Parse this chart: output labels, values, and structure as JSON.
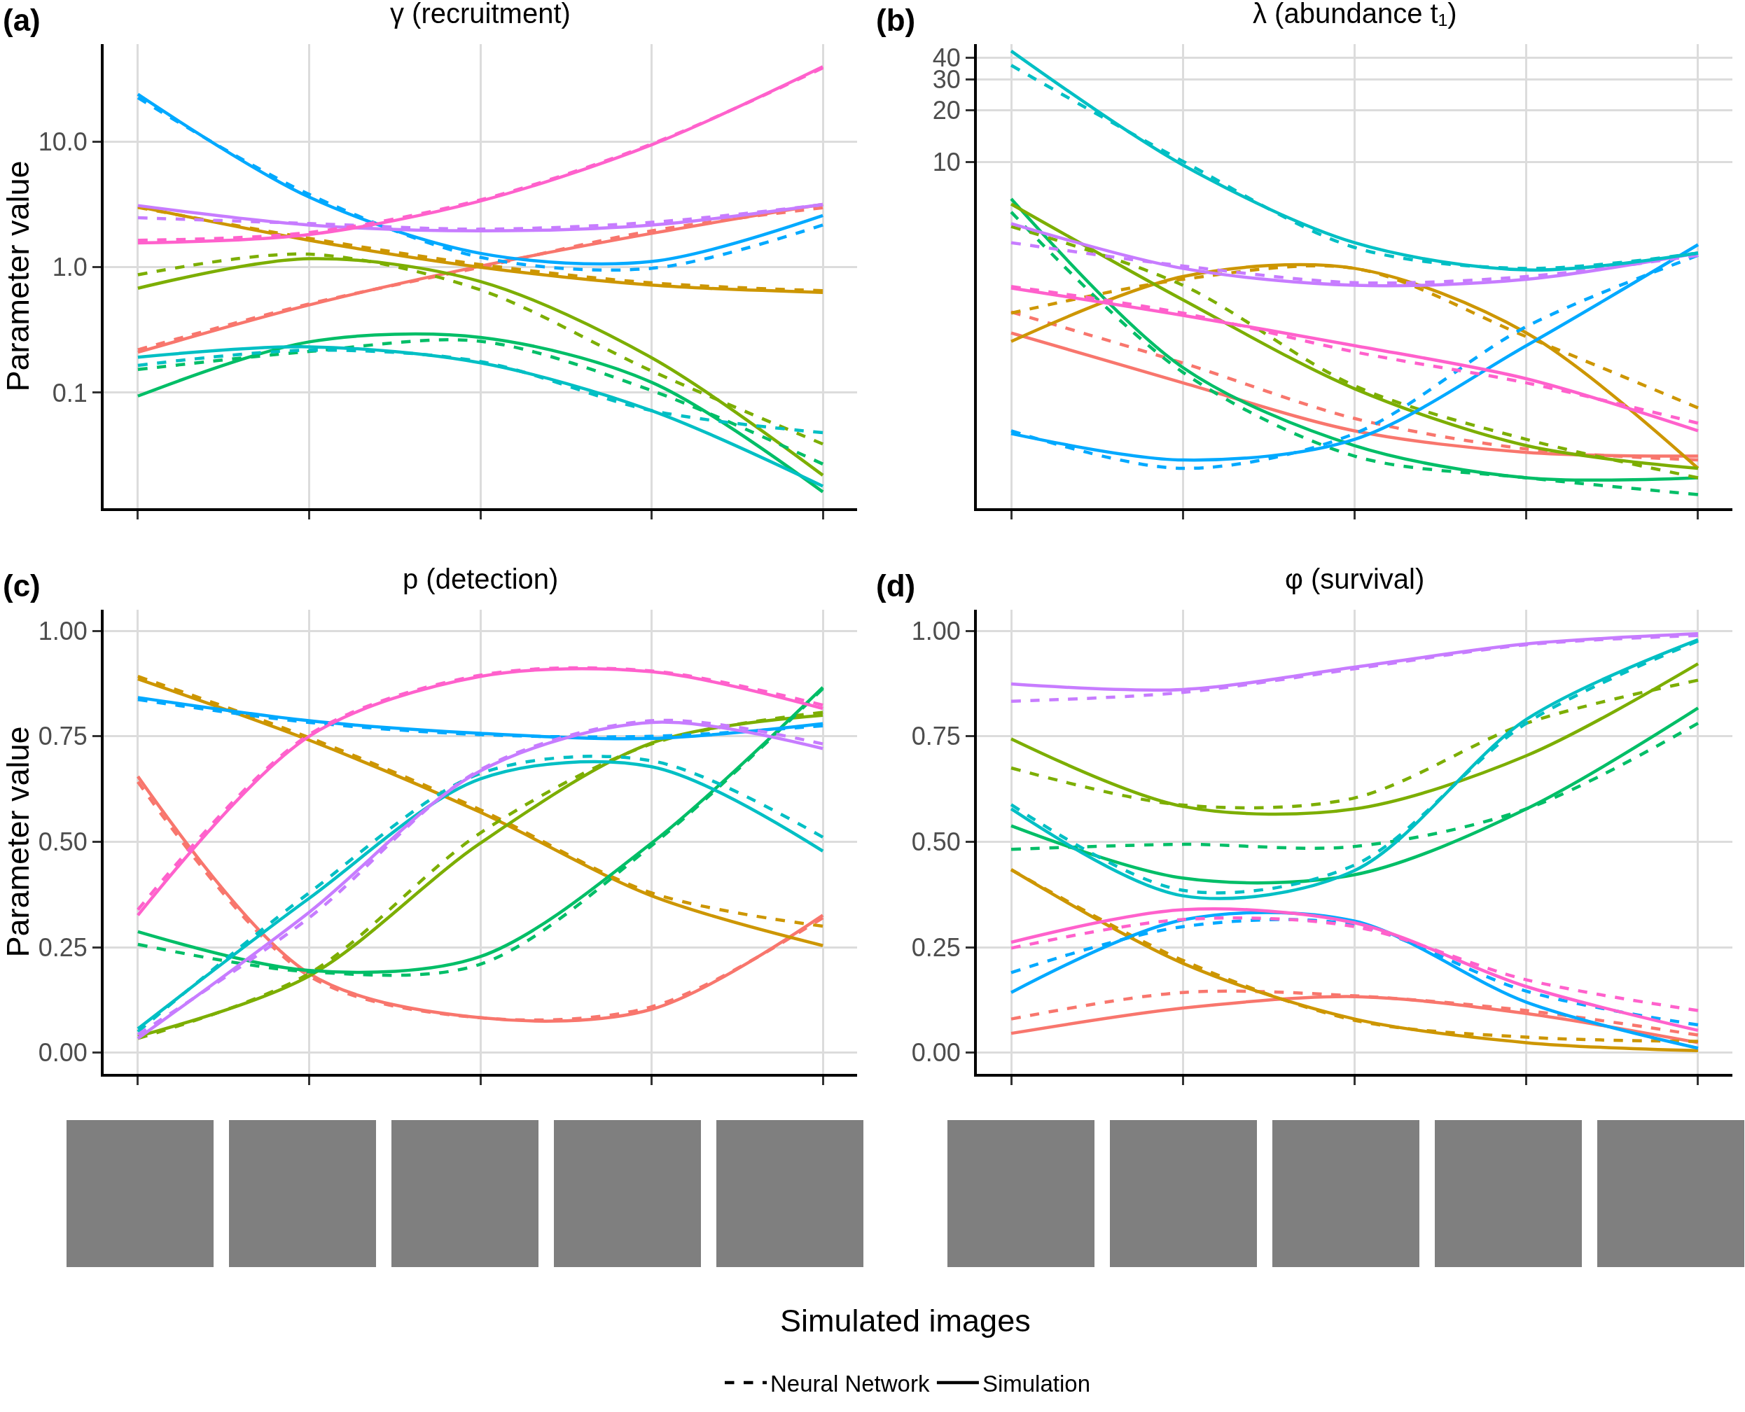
{
  "chart_data": [
    {
      "type": "line",
      "title": "γ (recruitment)",
      "ylabel": "Parameter value",
      "annotations": [
        "(a)"
      ],
      "categories": [
        null,
        null,
        null,
        null,
        null
      ],
      "log": true,
      "ylim": [
        0.012,
        60
      ],
      "yticks": [
        0.1,
        {
          "value": 1,
          "label": "1.0"
        },
        {
          "value": 10,
          "label": "10.0"
        }
      ],
      "grid": true,
      "tick_labels": "y",
      "series": [
        {
          "color": "#f8766d",
          "line_style": "dashed",
          "values": [
            0.22,
            0.51,
            1.0,
            1.95,
            2.98
          ]
        },
        {
          "color": "#f8766d",
          "line_style": "solid",
          "values": [
            0.21,
            0.5,
            1.02,
            1.86,
            3.17
          ]
        },
        {
          "color": "#cd9600",
          "line_style": "dashed",
          "values": [
            3.0,
            1.7,
            1.05,
            0.75,
            0.65
          ]
        },
        {
          "color": "#cd9600",
          "line_style": "solid",
          "values": [
            3.04,
            1.64,
            1.0,
            0.72,
            0.63
          ]
        },
        {
          "color": "#7cae00",
          "line_style": "dashed",
          "values": [
            0.87,
            1.27,
            0.66,
            0.149,
            0.039
          ]
        },
        {
          "color": "#7cae00",
          "line_style": "solid",
          "values": [
            0.68,
            1.17,
            0.77,
            0.19,
            0.022
          ]
        },
        {
          "color": "#00be67",
          "line_style": "dashed",
          "values": [
            0.153,
            0.213,
            0.257,
            0.104,
            0.027
          ]
        },
        {
          "color": "#00be67",
          "line_style": "solid",
          "values": [
            0.094,
            0.254,
            0.276,
            0.121,
            0.0162
          ]
        },
        {
          "color": "#00bfc4",
          "line_style": "dashed",
          "values": [
            0.165,
            0.218,
            0.177,
            0.072,
            0.048
          ]
        },
        {
          "color": "#00bfc4",
          "line_style": "solid",
          "values": [
            0.192,
            0.232,
            0.173,
            0.072,
            0.018
          ]
        },
        {
          "color": "#00a9ff",
          "line_style": "dashed",
          "values": [
            22.4,
            3.81,
            1.2,
            0.98,
            2.17
          ]
        },
        {
          "color": "#00a9ff",
          "line_style": "solid",
          "values": [
            23.9,
            3.62,
            1.29,
            1.11,
            2.58
          ]
        },
        {
          "color": "#c77cff",
          "line_style": "dashed",
          "values": [
            2.48,
            2.23,
            2.01,
            2.28,
            3.15
          ]
        },
        {
          "color": "#c77cff",
          "line_style": "solid",
          "values": [
            3.1,
            2.17,
            1.95,
            2.17,
            3.17
          ]
        },
        {
          "color": "#ff61cc",
          "line_style": "dashed",
          "values": [
            1.64,
            1.89,
            3.44,
            9.6,
            38.8
          ]
        },
        {
          "color": "#ff61cc",
          "line_style": "solid",
          "values": [
            1.56,
            1.82,
            3.37,
            9.45,
            39.6
          ]
        }
      ]
    },
    {
      "type": "line",
      "title": "λ (abundance t₁)",
      "annotations": [
        "(b)"
      ],
      "categories": [
        null,
        null,
        null,
        null,
        null
      ],
      "log": true,
      "ylim": [
        0.1,
        48
      ],
      "yticks": [
        10,
        20,
        30,
        40
      ],
      "grid": true,
      "tick_labels": "y",
      "series": [
        {
          "color": "#f8766d",
          "line_style": "dashed",
          "values": [
            1.36,
            0.69,
            0.33,
            0.22,
            0.19
          ]
        },
        {
          "color": "#f8766d",
          "line_style": "solid",
          "values": [
            1.03,
            0.53,
            0.28,
            0.21,
            0.2
          ]
        },
        {
          "color": "#cd9600",
          "line_style": "dashed",
          "values": [
            1.34,
            2.1,
            2.43,
            0.98,
            0.38
          ]
        },
        {
          "color": "#cd9600",
          "line_style": "solid",
          "values": [
            0.92,
            2.18,
            2.43,
            1.03,
            0.17
          ]
        },
        {
          "color": "#00be67",
          "line_style": "dashed",
          "values": [
            5.14,
            0.61,
            0.2,
            0.15,
            0.12
          ]
        },
        {
          "color": "#00be67",
          "line_style": "solid",
          "values": [
            6.13,
            0.65,
            0.23,
            0.15,
            0.15
          ]
        },
        {
          "color": "#7cae00",
          "line_style": "dashed",
          "values": [
            4.24,
            1.94,
            0.51,
            0.25,
            0.15
          ]
        },
        {
          "color": "#7cae00",
          "line_style": "solid",
          "values": [
            5.72,
            1.6,
            0.49,
            0.23,
            0.17
          ]
        },
        {
          "color": "#00a9ff",
          "line_style": "dashed",
          "values": [
            0.28,
            0.17,
            0.27,
            1.12,
            2.89
          ]
        },
        {
          "color": "#00a9ff",
          "line_style": "solid",
          "values": [
            0.27,
            0.19,
            0.25,
            0.87,
            3.33
          ]
        },
        {
          "color": "#c77cff",
          "line_style": "dashed",
          "values": [
            3.42,
            2.51,
            2.01,
            2.18,
            2.89
          ]
        },
        {
          "color": "#c77cff",
          "line_style": "solid",
          "values": [
            4.41,
            2.43,
            1.94,
            2.1,
            2.98
          ]
        },
        {
          "color": "#00bfc4",
          "line_style": "solid",
          "values": [
            43.8,
            9.61,
            3.42,
            2.38,
            2.98
          ]
        },
        {
          "color": "#00bfc4",
          "line_style": "dashed",
          "values": [
            36.2,
            10.1,
            3.21,
            2.43,
            2.98
          ]
        },
        {
          "color": "#ff61cc",
          "line_style": "dashed",
          "values": [
            1.91,
            1.34,
            0.8,
            0.53,
            0.31
          ]
        },
        {
          "color": "#ff61cc",
          "line_style": "solid",
          "values": [
            1.87,
            1.3,
            0.87,
            0.56,
            0.28
          ]
        }
      ]
    },
    {
      "type": "line",
      "title": "p (detection)",
      "ylabel": "Parameter value",
      "annotations": [
        "(c)"
      ],
      "categories": [
        null,
        null,
        null,
        null,
        null
      ],
      "ylim": [
        -0.05,
        1.05
      ],
      "yticks": [
        {
          "value": 0,
          "label": "0.00"
        },
        0.25,
        {
          "value": 0.5,
          "label": "0.50"
        },
        0.75,
        {
          "value": 1,
          "label": "1.00"
        }
      ],
      "grid": true,
      "tick_labels": "y",
      "series": [
        {
          "color": "#f8766d",
          "line_style": "dashed",
          "values": [
            0.642,
            0.182,
            0.083,
            0.109,
            0.32
          ]
        },
        {
          "color": "#f8766d",
          "line_style": "solid",
          "values": [
            0.655,
            0.188,
            0.083,
            0.103,
            0.326
          ]
        },
        {
          "color": "#cd9600",
          "line_style": "dashed",
          "values": [
            0.892,
            0.747,
            0.576,
            0.379,
            0.3
          ]
        },
        {
          "color": "#cd9600",
          "line_style": "solid",
          "values": [
            0.886,
            0.741,
            0.57,
            0.372,
            0.254
          ]
        },
        {
          "color": "#7cae00",
          "line_style": "dashed",
          "values": [
            0.034,
            0.188,
            0.521,
            0.732,
            0.807
          ]
        },
        {
          "color": "#7cae00",
          "line_style": "solid",
          "values": [
            0.039,
            0.182,
            0.497,
            0.734,
            0.8
          ]
        },
        {
          "color": "#00be67",
          "line_style": "dashed",
          "values": [
            0.257,
            0.192,
            0.21,
            0.491,
            0.863
          ]
        },
        {
          "color": "#00be67",
          "line_style": "solid",
          "values": [
            0.287,
            0.195,
            0.228,
            0.497,
            0.866
          ]
        },
        {
          "color": "#00bfc4",
          "line_style": "dashed",
          "values": [
            0.05,
            0.379,
            0.662,
            0.692,
            0.511
          ]
        },
        {
          "color": "#00bfc4",
          "line_style": "solid",
          "values": [
            0.057,
            0.366,
            0.649,
            0.678,
            0.478
          ]
        },
        {
          "color": "#00a9ff",
          "line_style": "dashed",
          "values": [
            0.837,
            0.783,
            0.754,
            0.75,
            0.775
          ]
        },
        {
          "color": "#00a9ff",
          "line_style": "solid",
          "values": [
            0.842,
            0.787,
            0.757,
            0.745,
            0.78
          ]
        },
        {
          "color": "#c77cff",
          "line_style": "dashed",
          "values": [
            0.043,
            0.32,
            0.671,
            0.787,
            0.732
          ]
        },
        {
          "color": "#c77cff",
          "line_style": "solid",
          "values": [
            0.034,
            0.333,
            0.668,
            0.783,
            0.721
          ]
        },
        {
          "color": "#ff61cc",
          "line_style": "dashed",
          "values": [
            0.339,
            0.754,
            0.895,
            0.905,
            0.824
          ]
        },
        {
          "color": "#ff61cc",
          "line_style": "solid",
          "values": [
            0.326,
            0.75,
            0.892,
            0.903,
            0.816
          ]
        }
      ]
    },
    {
      "type": "line",
      "title": "φ (survival)",
      "xlabel": "Simulated images",
      "annotations": [
        "(d)"
      ],
      "categories": [
        null,
        null,
        null,
        null,
        null
      ],
      "ylim": [
        -0.05,
        1.05
      ],
      "yticks": [
        {
          "value": 0,
          "label": "0.00"
        },
        0.25,
        {
          "value": 0.5,
          "label": "0.50"
        },
        0.75,
        {
          "value": 1,
          "label": "1.00"
        }
      ],
      "grid": true,
      "tick_labels": "y",
      "legend": "bottom",
      "series": [
        {
          "color": "#f8766d",
          "line_style": "dashed",
          "values": [
            0.08,
            0.143,
            0.135,
            0.1,
            0.042
          ]
        },
        {
          "color": "#f8766d",
          "line_style": "solid",
          "values": [
            0.046,
            0.106,
            0.133,
            0.093,
            0.024
          ]
        },
        {
          "color": "#cd9600",
          "line_style": "dashed",
          "values": [
            0.434,
            0.219,
            0.077,
            0.037,
            0.027
          ]
        },
        {
          "color": "#cd9600",
          "line_style": "solid",
          "values": [
            0.434,
            0.212,
            0.08,
            0.024,
            0.005
          ]
        },
        {
          "color": "#7cae00",
          "line_style": "dashed",
          "values": [
            0.675,
            0.587,
            0.604,
            0.781,
            0.883
          ]
        },
        {
          "color": "#7cae00",
          "line_style": "solid",
          "values": [
            0.744,
            0.584,
            0.578,
            0.704,
            0.922
          ]
        },
        {
          "color": "#00be67",
          "line_style": "dashed",
          "values": [
            0.482,
            0.494,
            0.489,
            0.578,
            0.781
          ]
        },
        {
          "color": "#00be67",
          "line_style": "solid",
          "values": [
            0.538,
            0.414,
            0.422,
            0.578,
            0.817
          ]
        },
        {
          "color": "#00bfc4",
          "line_style": "dashed",
          "values": [
            0.588,
            0.385,
            0.445,
            0.781,
            0.976
          ]
        },
        {
          "color": "#00bfc4",
          "line_style": "solid",
          "values": [
            0.578,
            0.372,
            0.432,
            0.79,
            0.979
          ]
        },
        {
          "color": "#00a9ff",
          "line_style": "dashed",
          "values": [
            0.19,
            0.299,
            0.303,
            0.146,
            0.066
          ]
        },
        {
          "color": "#00a9ff",
          "line_style": "solid",
          "values": [
            0.143,
            0.315,
            0.312,
            0.12,
            0.011
          ]
        },
        {
          "color": "#c77cff",
          "line_style": "dashed",
          "values": [
            0.833,
            0.854,
            0.91,
            0.967,
            0.989
          ]
        },
        {
          "color": "#c77cff",
          "line_style": "solid",
          "values": [
            0.874,
            0.861,
            0.914,
            0.969,
            0.993
          ]
        },
        {
          "color": "#ff61cc",
          "line_style": "dashed",
          "values": [
            0.248,
            0.316,
            0.299,
            0.173,
            0.1
          ]
        },
        {
          "color": "#ff61cc",
          "line_style": "solid",
          "values": [
            0.262,
            0.339,
            0.308,
            0.157,
            0.053
          ]
        },
        {
          "name": "Neural Network",
          "color": "#000000",
          "line_style": "dashed",
          "values": [
            null,
            null,
            null,
            null,
            null
          ]
        },
        {
          "name": "Simulation",
          "color": "#000000",
          "line_style": "solid",
          "values": [
            null,
            null,
            null,
            null,
            null
          ]
        }
      ]
    }
  ]
}
